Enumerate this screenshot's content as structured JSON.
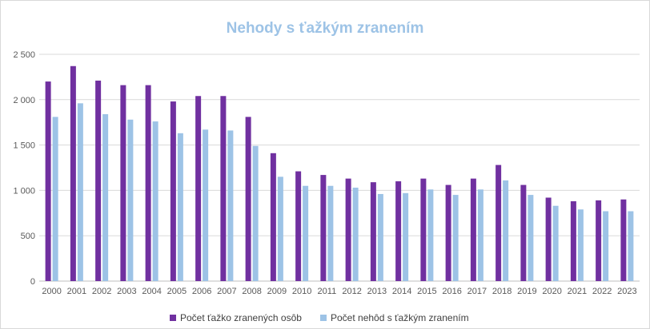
{
  "chart_data": {
    "type": "bar",
    "title": "Nehody s ťažkým zranením",
    "categories": [
      "2000",
      "2001",
      "2002",
      "2003",
      "2004",
      "2005",
      "2006",
      "2007",
      "2008",
      "2009",
      "2010",
      "2011",
      "2012",
      "2013",
      "2014",
      "2015",
      "2016",
      "2017",
      "2018",
      "2019",
      "2020",
      "2021",
      "2022",
      "2023"
    ],
    "series": [
      {
        "name": "Počet ťažko zranených osôb",
        "color": "#7030a0",
        "values": [
          2200,
          2370,
          2210,
          2160,
          2160,
          1980,
          2040,
          2040,
          1810,
          1410,
          1210,
          1170,
          1130,
          1090,
          1100,
          1130,
          1060,
          1130,
          1280,
          1060,
          920,
          880,
          890,
          900
        ]
      },
      {
        "name": "Počet nehôd s ťažkým zranením",
        "color": "#9dc3e6",
        "values": [
          1810,
          1960,
          1840,
          1780,
          1760,
          1630,
          1670,
          1660,
          1490,
          1150,
          1050,
          1050,
          1030,
          960,
          970,
          1010,
          950,
          1010,
          1110,
          950,
          830,
          790,
          770,
          770
        ]
      }
    ],
    "ylim": [
      0,
      2500
    ],
    "yticks": [
      "0",
      "500",
      "1 000",
      "1 500",
      "2 000",
      "2 500"
    ],
    "grid": true,
    "legend": "bottom-center",
    "title_color": "#9dc3e6"
  }
}
